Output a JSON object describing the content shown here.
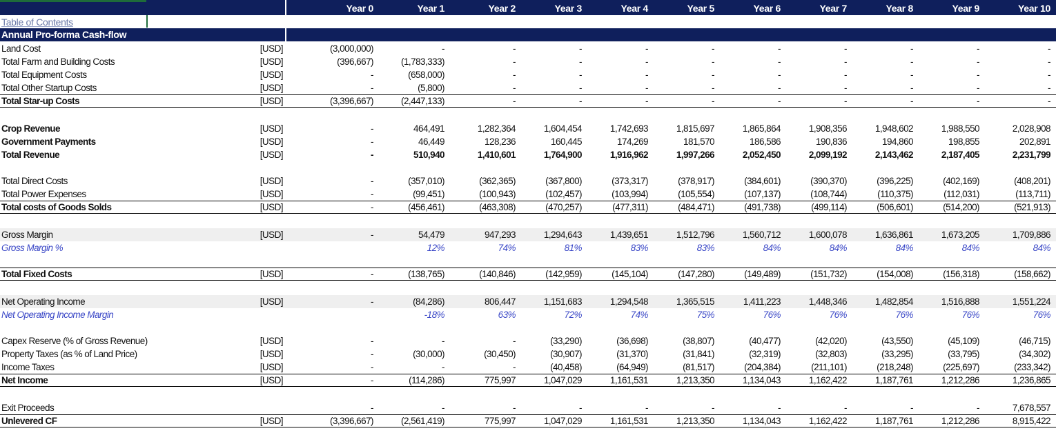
{
  "header": {
    "years": [
      "Year 0",
      "Year 1",
      "Year 2",
      "Year 3",
      "Year 4",
      "Year 5",
      "Year 6",
      "Year 7",
      "Year 8",
      "Year 9",
      "Year 10"
    ]
  },
  "toc_link": "Table of Contents",
  "section_title": "Annual Pro-forma Cash-flow",
  "rows": [
    {
      "label": "Land Cost",
      "unit": "[USD]",
      "values": [
        "(3,000,000)",
        "-",
        "-",
        "-",
        "-",
        "-",
        "-",
        "-",
        "-",
        "-",
        "-"
      ],
      "style": "normal"
    },
    {
      "label": "Total Farm and Building Costs",
      "unit": "[USD]",
      "values": [
        "(396,667)",
        "(1,783,333)",
        "-",
        "-",
        "-",
        "-",
        "-",
        "-",
        "-",
        "-",
        "-"
      ],
      "style": "normal"
    },
    {
      "label": "Total Equipment Costs",
      "unit": "[USD]",
      "values": [
        "-",
        "(658,000)",
        "-",
        "-",
        "-",
        "-",
        "-",
        "-",
        "-",
        "-",
        "-"
      ],
      "style": "normal"
    },
    {
      "label": "Total Other Startup Costs",
      "unit": "[USD]",
      "values": [
        "-",
        "(5,800)",
        "-",
        "-",
        "-",
        "-",
        "-",
        "-",
        "-",
        "-",
        "-"
      ],
      "style": "normal"
    },
    {
      "label": "Total Star-up Costs",
      "unit": "[USD]",
      "values": [
        "(3,396,667)",
        "(2,447,133)",
        "-",
        "-",
        "-",
        "-",
        "-",
        "-",
        "-",
        "-",
        "-"
      ],
      "style": "total"
    },
    {
      "label": "Crop Revenue",
      "unit": "[USD]",
      "values": [
        "-",
        "464,491",
        "1,282,364",
        "1,604,454",
        "1,742,693",
        "1,815,697",
        "1,865,864",
        "1,908,356",
        "1,948,602",
        "1,988,550",
        "2,028,908"
      ],
      "style": "boldlabel"
    },
    {
      "label": "Government Payments",
      "unit": "[USD]",
      "values": [
        "-",
        "46,449",
        "128,236",
        "160,445",
        "174,269",
        "181,570",
        "186,586",
        "190,836",
        "194,860",
        "198,855",
        "202,891"
      ],
      "style": "boldlabel"
    },
    {
      "label": "Total Revenue",
      "unit": "[USD]",
      "values": [
        "-",
        "510,940",
        "1,410,601",
        "1,764,900",
        "1,916,962",
        "1,997,266",
        "2,052,450",
        "2,099,192",
        "2,143,462",
        "2,187,405",
        "2,231,799"
      ],
      "style": "boldall"
    },
    {
      "label": "Total Direct Costs",
      "unit": "[USD]",
      "values": [
        "-",
        "(357,010)",
        "(362,365)",
        "(367,800)",
        "(373,317)",
        "(378,917)",
        "(384,601)",
        "(390,370)",
        "(396,225)",
        "(402,169)",
        "(408,201)"
      ],
      "style": "normal"
    },
    {
      "label": "Total Power Expenses",
      "unit": "[USD]",
      "values": [
        "-",
        "(99,451)",
        "(100,943)",
        "(102,457)",
        "(103,994)",
        "(105,554)",
        "(107,137)",
        "(108,744)",
        "(110,375)",
        "(112,031)",
        "(113,711)"
      ],
      "style": "normal"
    },
    {
      "label": "Total costs of Goods Solds",
      "unit": "[USD]",
      "values": [
        "-",
        "(456,461)",
        "(463,308)",
        "(470,257)",
        "(477,311)",
        "(484,471)",
        "(491,738)",
        "(499,114)",
        "(506,601)",
        "(514,200)",
        "(521,913)"
      ],
      "style": "total"
    },
    {
      "label": "Gross Margin",
      "unit": "[USD]",
      "values": [
        "-",
        "54,479",
        "947,293",
        "1,294,643",
        "1,439,651",
        "1,512,796",
        "1,560,712",
        "1,600,078",
        "1,636,861",
        "1,673,205",
        "1,709,886"
      ],
      "style": "shade"
    },
    {
      "label": "Gross Margin %",
      "unit": "",
      "values": [
        "",
        "12%",
        "74%",
        "81%",
        "83%",
        "83%",
        "84%",
        "84%",
        "84%",
        "84%",
        "84%"
      ],
      "style": "italic"
    },
    {
      "label": "Total Fixed Costs",
      "unit": "[USD]",
      "values": [
        "-",
        "(138,765)",
        "(140,846)",
        "(142,959)",
        "(145,104)",
        "(147,280)",
        "(149,489)",
        "(151,732)",
        "(154,008)",
        "(156,318)",
        "(158,662)"
      ],
      "style": "totalbox"
    },
    {
      "label": "Net Operating Income",
      "unit": "[USD]",
      "values": [
        "-",
        "(84,286)",
        "806,447",
        "1,151,683",
        "1,294,548",
        "1,365,515",
        "1,411,223",
        "1,448,346",
        "1,482,854",
        "1,516,888",
        "1,551,224"
      ],
      "style": "shade"
    },
    {
      "label": "Net Operating Income Margin",
      "unit": "",
      "values": [
        "",
        "-18%",
        "63%",
        "72%",
        "74%",
        "75%",
        "76%",
        "76%",
        "76%",
        "76%",
        "76%"
      ],
      "style": "italic"
    },
    {
      "label": "Capex Reserve (% of Gross Revenue)",
      "unit": "[USD]",
      "values": [
        "-",
        "-",
        "-",
        "(33,290)",
        "(36,698)",
        "(38,807)",
        "(40,477)",
        "(42,020)",
        "(43,550)",
        "(45,109)",
        "(46,715)"
      ],
      "style": "normal"
    },
    {
      "label": "Property Taxes (as % of Land Price)",
      "unit": "[USD]",
      "values": [
        "-",
        "(30,000)",
        "(30,450)",
        "(30,907)",
        "(31,370)",
        "(31,841)",
        "(32,319)",
        "(32,803)",
        "(33,295)",
        "(33,795)",
        "(34,302)"
      ],
      "style": "normal"
    },
    {
      "label": "Income Taxes",
      "unit": "[USD]",
      "values": [
        "-",
        "-",
        "-",
        "(40,458)",
        "(64,949)",
        "(81,517)",
        "(204,384)",
        "(211,101)",
        "(218,248)",
        "(225,697)",
        "(233,342)"
      ],
      "style": "normal"
    },
    {
      "label": "Net Income",
      "unit": "[USD]",
      "values": [
        "-",
        "(114,286)",
        "775,997",
        "1,047,029",
        "1,161,531",
        "1,213,350",
        "1,134,043",
        "1,162,422",
        "1,187,761",
        "1,212,286",
        "1,236,865"
      ],
      "style": "total"
    },
    {
      "label": "Exit Proceeds",
      "unit": "",
      "values": [
        "-",
        "-",
        "-",
        "-",
        "-",
        "-",
        "-",
        "-",
        "-",
        "-",
        "7,678,557"
      ],
      "style": "normal"
    },
    {
      "label": "Unlevered CF",
      "unit": "[USD]",
      "values": [
        "(3,396,667)",
        "(2,561,419)",
        "775,997",
        "1,047,029",
        "1,161,531",
        "1,213,350",
        "1,134,043",
        "1,162,422",
        "1,187,761",
        "1,212,286",
        "8,915,422"
      ],
      "style": "total"
    }
  ]
}
